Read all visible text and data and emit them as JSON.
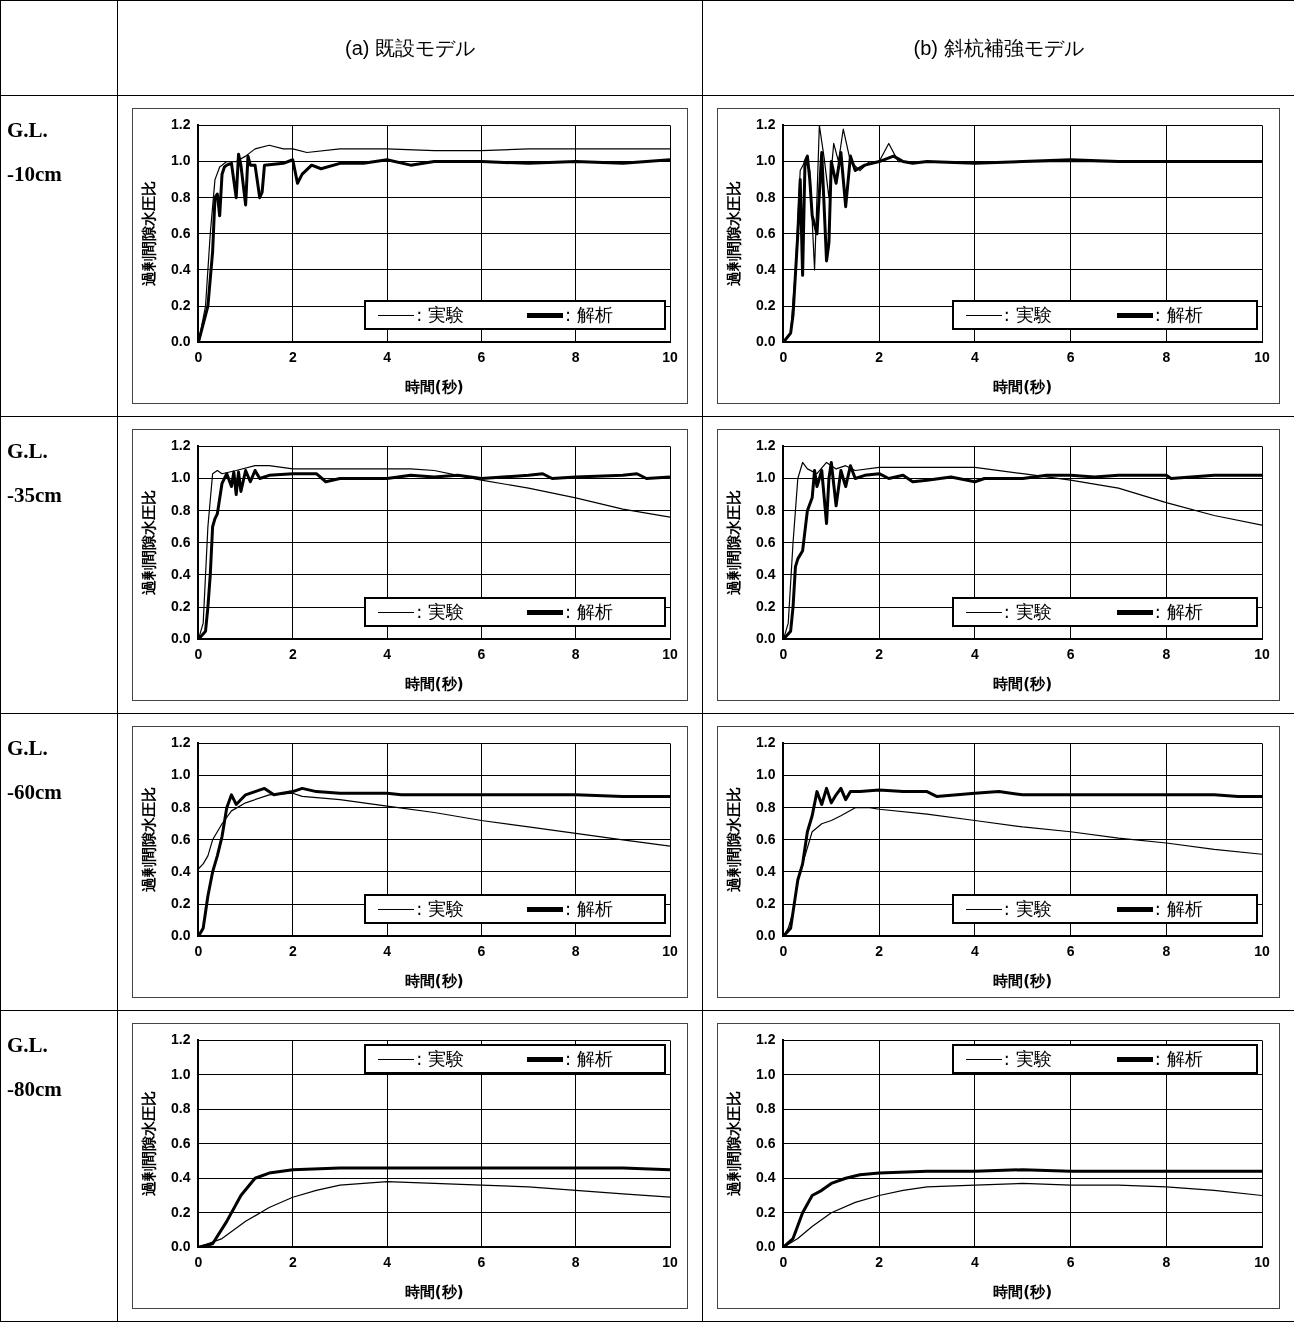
{
  "chart_data": [
    {
      "type": "line",
      "title": "(a) 既設モデル",
      "annotations": [
        "G.L. -10cm"
      ],
      "xlabel": "時間(秒)",
      "ylabel": "過剰間隙水圧比",
      "xlim": [
        0,
        10
      ],
      "xticks": [
        0,
        2,
        4,
        6,
        8,
        10
      ],
      "ylim": [
        0,
        1.2
      ],
      "yticks": [
        {
          "value": 0,
          "label": "0.0"
        },
        {
          "value": 0.2,
          "label": "0.2"
        },
        {
          "value": 0.4,
          "label": "0.4"
        },
        {
          "value": 0.6,
          "label": "0.6"
        },
        {
          "value": 0.8,
          "label": "0.8"
        },
        {
          "value": 1,
          "label": "1.0"
        },
        {
          "value": 1.2,
          "label": "1.2"
        }
      ],
      "grid": true,
      "legend": "bottom right",
      "series": [
        {
          "name": ": 実験",
          "color": "#000000",
          "x": [
            0,
            0.15,
            0.25,
            0.35,
            0.45,
            0.6,
            0.8,
            1.0,
            1.2,
            1.5,
            1.8,
            2.0,
            2.3,
            3,
            4,
            5,
            6,
            7,
            8,
            9,
            10
          ],
          "values": [
            0,
            0.2,
            0.6,
            0.9,
            0.97,
            1.0,
            1.0,
            1.03,
            1.07,
            1.09,
            1.07,
            1.07,
            1.05,
            1.07,
            1.07,
            1.06,
            1.06,
            1.07,
            1.07,
            1.07,
            1.07
          ]
        },
        {
          "name": ": 解析",
          "color": "#000000",
          "x": [
            0,
            0.2,
            0.3,
            0.35,
            0.4,
            0.45,
            0.5,
            0.55,
            0.6,
            0.7,
            0.8,
            0.85,
            0.9,
            1.0,
            1.05,
            1.1,
            1.2,
            1.3,
            1.35,
            1.4,
            1.8,
            2.0,
            2.1,
            2.2,
            2.4,
            2.6,
            3,
            3.5,
            4,
            4.5,
            5,
            6,
            7,
            8,
            9,
            10
          ],
          "values": [
            0,
            0.2,
            0.5,
            0.8,
            0.82,
            0.7,
            0.93,
            0.97,
            0.98,
            0.99,
            0.8,
            1.04,
            0.98,
            0.76,
            1.03,
            0.98,
            0.98,
            0.8,
            0.83,
            0.98,
            0.99,
            1.01,
            0.88,
            0.93,
            0.98,
            0.96,
            0.99,
            0.99,
            1.01,
            0.98,
            1.0,
            1.0,
            0.99,
            1.0,
            0.99,
            1.01
          ]
        }
      ]
    },
    {
      "type": "line",
      "title": "(b) 斜杭補強モデル",
      "xlabel": "時間(秒)",
      "ylabel": "過剰間隙水圧比",
      "xlim": [
        0,
        10
      ],
      "xticks": [
        0,
        2,
        4,
        6,
        8,
        10
      ],
      "ylim": [
        0,
        1.2
      ],
      "yticks": [
        {
          "value": 0,
          "label": "0.0"
        },
        {
          "value": 0.2,
          "label": "0.2"
        },
        {
          "value": 0.4,
          "label": "0.4"
        },
        {
          "value": 0.6,
          "label": "0.6"
        },
        {
          "value": 0.8,
          "label": "0.8"
        },
        {
          "value": 1,
          "label": "1.0"
        },
        {
          "value": 1.2,
          "label": "1.2"
        }
      ],
      "grid": true,
      "legend": "bottom right",
      "series": [
        {
          "name": ": 実験",
          "color": "#000000",
          "x": [
            0,
            0.15,
            0.25,
            0.35,
            0.45,
            0.55,
            0.65,
            0.75,
            0.85,
            0.95,
            1.05,
            1.15,
            1.25,
            1.4,
            1.6,
            1.8,
            2.0,
            2.2,
            2.4,
            3,
            4,
            5,
            6,
            7,
            8,
            9,
            10
          ],
          "values": [
            0,
            0.05,
            0.4,
            0.95,
            1.0,
            0.95,
            0.4,
            1.2,
            1.02,
            0.8,
            1.1,
            1.0,
            1.18,
            1.0,
            0.95,
            1.0,
            1.0,
            1.1,
            1.0,
            1.0,
            0.99,
            1.0,
            1.0,
            1.0,
            1.0,
            1.0,
            1.0
          ]
        },
        {
          "name": ": 解析",
          "color": "#000000",
          "x": [
            0,
            0.15,
            0.2,
            0.3,
            0.35,
            0.4,
            0.45,
            0.5,
            0.55,
            0.6,
            0.7,
            0.8,
            0.9,
            0.95,
            1.0,
            1.1,
            1.2,
            1.3,
            1.4,
            1.5,
            1.7,
            2.0,
            2.3,
            2.5,
            2.7,
            3,
            4,
            5,
            6,
            7,
            8,
            9,
            10
          ],
          "values": [
            0,
            0.05,
            0.15,
            0.6,
            0.9,
            0.37,
            1.0,
            1.03,
            0.9,
            0.7,
            0.6,
            1.05,
            0.45,
            0.55,
            1.0,
            0.88,
            1.05,
            0.75,
            1.03,
            0.95,
            0.98,
            1.0,
            1.03,
            1.0,
            0.99,
            1.0,
            0.99,
            1.0,
            1.01,
            1.0,
            1.0,
            1.0,
            1.0
          ]
        }
      ]
    },
    {
      "type": "line",
      "annotations": [
        "G.L. -35cm"
      ],
      "xlabel": "時間(秒)",
      "ylabel": "過剰間隙水圧比",
      "xlim": [
        0,
        10
      ],
      "xticks": [
        0,
        2,
        4,
        6,
        8,
        10
      ],
      "ylim": [
        0,
        1.2
      ],
      "yticks": [
        {
          "value": 0,
          "label": "0.0"
        },
        {
          "value": 0.2,
          "label": "0.2"
        },
        {
          "value": 0.4,
          "label": "0.4"
        },
        {
          "value": 0.6,
          "label": "0.6"
        },
        {
          "value": 0.8,
          "label": "0.8"
        },
        {
          "value": 1,
          "label": "1.0"
        },
        {
          "value": 1.2,
          "label": "1.2"
        }
      ],
      "grid": true,
      "legend": "bottom right",
      "series": [
        {
          "name": ": 実験",
          "color": "#000000",
          "x": [
            0,
            0.1,
            0.2,
            0.3,
            0.4,
            0.5,
            0.8,
            1.2,
            1.5,
            2,
            3,
            4,
            4.5,
            5,
            5.5,
            6,
            7,
            8,
            9,
            10
          ],
          "values": [
            0,
            0.1,
            0.7,
            1.03,
            1.05,
            1.03,
            1.05,
            1.08,
            1.08,
            1.06,
            1.06,
            1.06,
            1.06,
            1.05,
            1.02,
            0.99,
            0.94,
            0.88,
            0.81,
            0.76
          ]
        },
        {
          "name": ": 解析",
          "color": "#000000",
          "x": [
            0,
            0.15,
            0.2,
            0.25,
            0.3,
            0.35,
            0.4,
            0.5,
            0.6,
            0.7,
            0.75,
            0.8,
            0.85,
            0.9,
            1.0,
            1.1,
            1.2,
            1.3,
            1.5,
            2,
            2.5,
            2.7,
            3,
            3.5,
            4,
            4.5,
            5,
            5.5,
            6,
            7,
            7.3,
            7.5,
            8,
            9,
            9.3,
            9.5,
            10
          ],
          "values": [
            0,
            0.05,
            0.2,
            0.4,
            0.7,
            0.75,
            0.78,
            0.97,
            1.03,
            0.95,
            1.04,
            0.9,
            1.04,
            0.92,
            1.05,
            0.98,
            1.05,
            1.0,
            1.02,
            1.03,
            1.03,
            0.98,
            1.0,
            1.0,
            1.0,
            1.02,
            1.01,
            1.02,
            1.0,
            1.02,
            1.03,
            1.0,
            1.01,
            1.02,
            1.03,
            1.0,
            1.01
          ]
        }
      ]
    },
    {
      "type": "line",
      "xlabel": "時間(秒)",
      "ylabel": "過剰間隙水圧比",
      "xlim": [
        0,
        10
      ],
      "xticks": [
        0,
        2,
        4,
        6,
        8,
        10
      ],
      "ylim": [
        0,
        1.2
      ],
      "yticks": [
        {
          "value": 0,
          "label": "0.0"
        },
        {
          "value": 0.2,
          "label": "0.2"
        },
        {
          "value": 0.4,
          "label": "0.4"
        },
        {
          "value": 0.6,
          "label": "0.6"
        },
        {
          "value": 0.8,
          "label": "0.8"
        },
        {
          "value": 1,
          "label": "1.0"
        },
        {
          "value": 1.2,
          "label": "1.2"
        }
      ],
      "grid": true,
      "legend": "bottom right",
      "series": [
        {
          "name": ": 実験",
          "color": "#000000",
          "x": [
            0,
            0.1,
            0.2,
            0.3,
            0.4,
            0.5,
            0.7,
            0.9,
            1.1,
            1.3,
            1.5,
            2,
            3,
            4,
            5,
            6,
            7,
            8,
            9,
            10
          ],
          "values": [
            0,
            0.1,
            0.6,
            1.0,
            1.1,
            1.06,
            1.03,
            1.1,
            1.06,
            1.08,
            1.05,
            1.07,
            1.07,
            1.07,
            1.03,
            0.99,
            0.94,
            0.85,
            0.77,
            0.71
          ]
        },
        {
          "name": ": 解析",
          "color": "#000000",
          "x": [
            0,
            0.15,
            0.2,
            0.25,
            0.3,
            0.4,
            0.5,
            0.6,
            0.65,
            0.7,
            0.8,
            0.9,
            0.95,
            1.0,
            1.1,
            1.2,
            1.3,
            1.4,
            1.5,
            1.7,
            2.0,
            2.2,
            2.5,
            2.7,
            3,
            3.5,
            4,
            4.2,
            5,
            5.5,
            6,
            6.5,
            7,
            8,
            8.1,
            9,
            10
          ],
          "values": [
            0,
            0.05,
            0.2,
            0.45,
            0.5,
            0.55,
            0.8,
            0.88,
            1.05,
            0.95,
            1.05,
            0.72,
            1.0,
            1.1,
            0.83,
            1.05,
            0.95,
            1.08,
            1.0,
            1.02,
            1.03,
            1.0,
            1.02,
            0.98,
            0.99,
            1.01,
            0.98,
            1.0,
            1.0,
            1.02,
            1.02,
            1.01,
            1.02,
            1.02,
            1.0,
            1.02,
            1.02
          ]
        }
      ]
    },
    {
      "type": "line",
      "annotations": [
        "G.L. -60cm"
      ],
      "xlabel": "時間(秒)",
      "ylabel": "過剰間隙水圧比",
      "xlim": [
        0,
        10
      ],
      "xticks": [
        0,
        2,
        4,
        6,
        8,
        10
      ],
      "ylim": [
        0,
        1.2
      ],
      "yticks": [
        {
          "value": 0,
          "label": "0.0"
        },
        {
          "value": 0.2,
          "label": "0.2"
        },
        {
          "value": 0.4,
          "label": "0.4"
        },
        {
          "value": 0.6,
          "label": "0.6"
        },
        {
          "value": 0.8,
          "label": "0.8"
        },
        {
          "value": 1,
          "label": "1.0"
        },
        {
          "value": 1.2,
          "label": "1.2"
        }
      ],
      "grid": true,
      "legend": "bottom right",
      "series": [
        {
          "name": ": 実験",
          "color": "#000000",
          "x": [
            0,
            0.1,
            0.2,
            0.3,
            0.5,
            0.7,
            1.0,
            1.5,
            2,
            2.2,
            3,
            4,
            5,
            6,
            7,
            8,
            9,
            10
          ],
          "values": [
            0.42,
            0.45,
            0.5,
            0.6,
            0.7,
            0.78,
            0.83,
            0.88,
            0.89,
            0.87,
            0.85,
            0.81,
            0.77,
            0.72,
            0.68,
            0.64,
            0.6,
            0.56
          ]
        },
        {
          "name": ": 解析",
          "color": "#000000",
          "x": [
            0,
            0.1,
            0.2,
            0.3,
            0.4,
            0.5,
            0.6,
            0.7,
            0.8,
            1.0,
            1.2,
            1.4,
            1.6,
            2,
            2.2,
            2.5,
            3,
            4,
            4.3,
            5,
            6,
            7,
            8,
            9,
            10
          ],
          "values": [
            0,
            0.05,
            0.25,
            0.4,
            0.5,
            0.62,
            0.8,
            0.88,
            0.82,
            0.88,
            0.9,
            0.92,
            0.88,
            0.9,
            0.92,
            0.9,
            0.89,
            0.89,
            0.88,
            0.88,
            0.88,
            0.88,
            0.88,
            0.87,
            0.87
          ]
        }
      ]
    },
    {
      "type": "line",
      "xlabel": "時間(秒)",
      "ylabel": "過剰間隙水圧比",
      "xlim": [
        0,
        10
      ],
      "xticks": [
        0,
        2,
        4,
        6,
        8,
        10
      ],
      "ylim": [
        0,
        1.2
      ],
      "yticks": [
        {
          "value": 0,
          "label": "0.0"
        },
        {
          "value": 0.2,
          "label": "0.2"
        },
        {
          "value": 0.4,
          "label": "0.4"
        },
        {
          "value": 0.6,
          "label": "0.6"
        },
        {
          "value": 0.8,
          "label": "0.8"
        },
        {
          "value": 1,
          "label": "1.0"
        },
        {
          "value": 1.2,
          "label": "1.2"
        }
      ],
      "grid": true,
      "legend": "bottom right",
      "series": [
        {
          "name": ": 実験",
          "color": "#000000",
          "x": [
            0,
            0.1,
            0.2,
            0.3,
            0.4,
            0.6,
            0.8,
            1.0,
            1.2,
            1.5,
            1.8,
            2,
            3,
            4,
            5,
            6,
            7,
            8,
            9,
            10
          ],
          "values": [
            0,
            0.05,
            0.15,
            0.35,
            0.45,
            0.65,
            0.7,
            0.72,
            0.75,
            0.8,
            0.8,
            0.79,
            0.76,
            0.72,
            0.68,
            0.65,
            0.61,
            0.58,
            0.54,
            0.51
          ]
        },
        {
          "name": ": 解析",
          "color": "#000000",
          "x": [
            0,
            0.15,
            0.2,
            0.3,
            0.4,
            0.5,
            0.6,
            0.7,
            0.8,
            0.9,
            1.0,
            1.1,
            1.2,
            1.3,
            1.4,
            1.6,
            2,
            2.5,
            3,
            3.2,
            4,
            4.5,
            5,
            6,
            7,
            8,
            9,
            9.5,
            10
          ],
          "values": [
            0,
            0.05,
            0.15,
            0.35,
            0.45,
            0.65,
            0.75,
            0.9,
            0.82,
            0.92,
            0.83,
            0.88,
            0.92,
            0.85,
            0.9,
            0.9,
            0.91,
            0.9,
            0.9,
            0.87,
            0.89,
            0.9,
            0.88,
            0.88,
            0.88,
            0.88,
            0.88,
            0.87,
            0.87
          ]
        }
      ]
    },
    {
      "type": "line",
      "annotations": [
        "G.L. -80cm"
      ],
      "xlabel": "時間(秒)",
      "ylabel": "過剰間隙水圧比",
      "xlim": [
        0,
        10
      ],
      "xticks": [
        0,
        2,
        4,
        6,
        8,
        10
      ],
      "ylim": [
        0,
        1.2
      ],
      "yticks": [
        {
          "value": 0,
          "label": "0.0"
        },
        {
          "value": 0.2,
          "label": "0.2"
        },
        {
          "value": 0.4,
          "label": "0.4"
        },
        {
          "value": 0.6,
          "label": "0.6"
        },
        {
          "value": 0.8,
          "label": "0.8"
        },
        {
          "value": 1,
          "label": "1.0"
        },
        {
          "value": 1.2,
          "label": "1.2"
        }
      ],
      "grid": true,
      "legend": "top right",
      "series": [
        {
          "name": ": 実験",
          "color": "#000000",
          "x": [
            0,
            0.5,
            1,
            1.5,
            2,
            2.5,
            3,
            4,
            5,
            6,
            7,
            8,
            9,
            10
          ],
          "values": [
            0,
            0.05,
            0.15,
            0.23,
            0.29,
            0.33,
            0.36,
            0.38,
            0.37,
            0.36,
            0.35,
            0.33,
            0.31,
            0.29
          ]
        },
        {
          "name": ": 解析",
          "color": "#000000",
          "x": [
            0,
            0.3,
            0.6,
            0.9,
            1.2,
            1.5,
            2,
            3,
            4,
            5,
            6,
            7,
            8,
            9,
            10
          ],
          "values": [
            0,
            0.02,
            0.15,
            0.3,
            0.4,
            0.43,
            0.45,
            0.46,
            0.46,
            0.46,
            0.46,
            0.46,
            0.46,
            0.46,
            0.45
          ]
        }
      ]
    },
    {
      "type": "line",
      "xlabel": "時間(秒)",
      "ylabel": "過剰間隙水圧比",
      "xlim": [
        0,
        10
      ],
      "xticks": [
        0,
        2,
        4,
        6,
        8,
        10
      ],
      "ylim": [
        0,
        1.2
      ],
      "yticks": [
        {
          "value": 0,
          "label": "0.0"
        },
        {
          "value": 0.2,
          "label": "0.2"
        },
        {
          "value": 0.4,
          "label": "0.4"
        },
        {
          "value": 0.6,
          "label": "0.6"
        },
        {
          "value": 0.8,
          "label": "0.8"
        },
        {
          "value": 1,
          "label": "1.0"
        },
        {
          "value": 1.2,
          "label": "1.2"
        }
      ],
      "grid": true,
      "legend": "top right",
      "series": [
        {
          "name": ": 実験",
          "color": "#000000",
          "x": [
            0,
            0.3,
            0.6,
            1,
            1.5,
            2,
            2.5,
            3,
            4,
            5,
            6,
            7,
            8,
            9,
            10
          ],
          "values": [
            0,
            0.05,
            0.12,
            0.2,
            0.26,
            0.3,
            0.33,
            0.35,
            0.36,
            0.37,
            0.36,
            0.36,
            0.35,
            0.33,
            0.3
          ]
        },
        {
          "name": ": 解析",
          "color": "#000000",
          "x": [
            0,
            0.2,
            0.4,
            0.6,
            0.8,
            1.0,
            1.3,
            1.6,
            2,
            3,
            4,
            5,
            6,
            7,
            8,
            9,
            10
          ],
          "values": [
            0,
            0.05,
            0.2,
            0.3,
            0.33,
            0.37,
            0.4,
            0.42,
            0.43,
            0.44,
            0.44,
            0.45,
            0.44,
            0.44,
            0.44,
            0.44,
            0.44
          ]
        }
      ]
    }
  ]
}
